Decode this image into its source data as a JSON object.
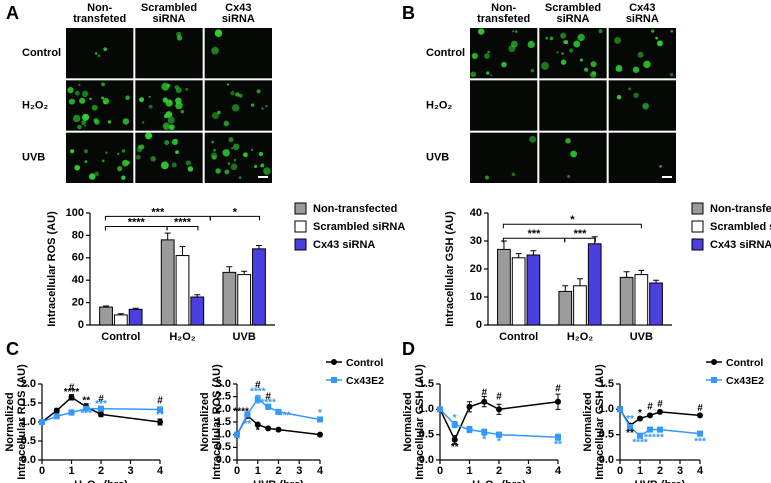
{
  "figure_panels": [
    {
      "label": "A",
      "image_grid": {
        "columns": [
          [
            "Non-",
            "transfeted"
          ],
          [
            "Scrambled",
            "siRNA"
          ],
          [
            "Cx43",
            "siRNA"
          ]
        ],
        "rows": [
          "Control",
          "H₂O₂",
          "UVB"
        ]
      }
    },
    {
      "label": "B",
      "image_grid": {
        "columns": [
          [
            "Non-",
            "transfeted"
          ],
          [
            "Scrambled",
            "siRNA"
          ],
          [
            "Cx43",
            "siRNA"
          ]
        ],
        "rows": [
          "Control",
          "H₂O₂",
          "UVB"
        ]
      }
    },
    {
      "label": "C"
    },
    {
      "label": "D"
    }
  ],
  "chart_data": [
    {
      "type": "bar",
      "ylabel": "Intracellular ROS (AU)",
      "categories": [
        "Control",
        "H₂O₂",
        "UVB"
      ],
      "ylim": [
        0,
        100
      ],
      "yticks": [
        0,
        20,
        40,
        60,
        80,
        100
      ],
      "series": [
        {
          "name": "Non-transfected",
          "color": "#9b9b9b",
          "values": [
            16,
            76,
            47
          ],
          "errors": [
            1,
            6,
            5
          ]
        },
        {
          "name": "Scrambled siRNA",
          "color": "#ffffff",
          "values": [
            9,
            62,
            45
          ],
          "errors": [
            1,
            8,
            3
          ]
        },
        {
          "name": "Cx43 siRNA",
          "color": "#4b3fe0",
          "values": [
            14,
            25,
            68
          ],
          "errors": [
            1,
            2,
            3
          ]
        }
      ],
      "brackets": [
        {
          "text": "***",
          "y": 97,
          "x": [
            -0.25,
            1.45
          ]
        },
        {
          "text": "*",
          "y": 97,
          "x": [
            1.45,
            2.25
          ]
        },
        {
          "text": "****",
          "y": 88,
          "x": [
            -0.25,
            0.75
          ]
        },
        {
          "text": "****",
          "y": 88,
          "x": [
            0.75,
            1.25
          ]
        }
      ]
    },
    {
      "type": "bar",
      "ylabel": "Intracellular GSH (AU)",
      "categories": [
        "Control",
        "H₂O₂",
        "UVB"
      ],
      "ylim": [
        0,
        40
      ],
      "yticks": [
        0,
        10,
        20,
        30,
        40
      ],
      "series": [
        {
          "name": "Non-transfected",
          "color": "#9b9b9b",
          "values": [
            27,
            12,
            17
          ],
          "errors": [
            3,
            2,
            2
          ]
        },
        {
          "name": "Scrambled siRNA",
          "color": "#ffffff",
          "values": [
            24,
            14,
            18
          ],
          "errors": [
            1.5,
            2.5,
            1.5
          ]
        },
        {
          "name": "Cx43 siRNA",
          "color": "#4b3fe0",
          "values": [
            25,
            29,
            15
          ],
          "errors": [
            1.5,
            2.5,
            1
          ]
        }
      ],
      "brackets": [
        {
          "text": "*",
          "y": 36,
          "x": [
            -0.25,
            2
          ]
        },
        {
          "text": "***",
          "y": 31,
          "x": [
            -0.25,
            0.75
          ]
        },
        {
          "text": "***",
          "y": 31,
          "x": [
            0.75,
            1.25
          ]
        }
      ]
    },
    {
      "type": "line",
      "ylabel": [
        "Normalized",
        "Intracellular ROS (AU)"
      ],
      "xlabel": "H₂O₂ (hrs)",
      "x": [
        0,
        0.5,
        1,
        1.5,
        2,
        4
      ],
      "xlim": [
        0,
        4
      ],
      "xticks": [
        0,
        1,
        2,
        3,
        4
      ],
      "ylim": [
        0,
        2
      ],
      "yticks": [
        {
          "value": 0,
          "label": "0.0"
        },
        {
          "value": 0.5,
          "label": "0.5"
        },
        {
          "value": 1,
          "label": "1.0"
        },
        {
          "value": 1.5,
          "label": "1.5"
        },
        {
          "value": 2,
          "label": "2.0"
        }
      ],
      "legend": false,
      "series": [
        {
          "name": "Control",
          "color": "#000000",
          "marker": "circle",
          "values": [
            1,
            1.3,
            1.65,
            1.4,
            1.2,
            1
          ],
          "errors": [
            0.05,
            0.06,
            0.07,
            0.08,
            0.06,
            0.08
          ]
        },
        {
          "name": "Cx43E2",
          "color": "#3399ff",
          "marker": "square",
          "values": [
            1,
            1.15,
            1.25,
            1.35,
            1.35,
            1.33
          ],
          "errors": [
            0.05,
            0.06,
            0.07,
            0.06,
            0.05,
            0.05
          ]
        }
      ],
      "annotations": [
        {
          "text": "#",
          "x": 1,
          "y": 1.9,
          "color": "#000000"
        },
        {
          "text": "****",
          "x": 1,
          "y": 1.78,
          "color": "#000000"
        },
        {
          "text": "**",
          "x": 1.5,
          "y": 1.55,
          "color": "#000000"
        },
        {
          "text": "#",
          "x": 2,
          "y": 1.6,
          "color": "#000000"
        },
        {
          "text": "#",
          "x": 4,
          "y": 1.55,
          "color": "#000000"
        },
        {
          "text": "***",
          "x": 2,
          "y": 1.47,
          "color": "#3399ff"
        },
        {
          "text": "***",
          "x": 1.5,
          "y": 1.22,
          "color": "#3399ff"
        },
        {
          "text": "**",
          "x": 4,
          "y": 1.17,
          "color": "#3399ff"
        }
      ]
    },
    {
      "type": "line",
      "ylabel": [
        "Normalized",
        "Intracellular ROS (AU)"
      ],
      "xlabel": "UVB (hrs)",
      "x": [
        0,
        0.5,
        1,
        1.5,
        2,
        4
      ],
      "xlim": [
        0,
        4
      ],
      "xticks": [
        0,
        1,
        2,
        3,
        4
      ],
      "ylim": [
        0,
        3
      ],
      "yticks": [
        {
          "value": 0,
          "label": "0.0"
        },
        {
          "value": 0.5,
          "label": "0.5"
        },
        {
          "value": 1,
          "label": "1.0"
        },
        {
          "value": 1.5,
          "label": "1.5"
        },
        {
          "value": 2,
          "label": "2.0"
        },
        {
          "value": 2.5,
          "label": "2.5"
        },
        {
          "value": 3,
          "label": "3.0"
        }
      ],
      "legend": true,
      "series": [
        {
          "name": "Control",
          "color": "#000000",
          "marker": "circle",
          "values": [
            1,
            1.75,
            1.4,
            1.25,
            1.2,
            1
          ],
          "errors": [
            0.05,
            0.1,
            0.06,
            0.05,
            0.05,
            0.05
          ]
        },
        {
          "name": "Cx43E2",
          "color": "#3399ff",
          "marker": "square",
          "values": [
            1,
            1.8,
            2.4,
            2.1,
            1.9,
            1.6
          ],
          "errors": [
            0.05,
            0.1,
            0.15,
            0.1,
            0.08,
            0.08
          ]
        }
      ],
      "annotations": [
        {
          "text": "****",
          "x": 0.2,
          "y": 1.9,
          "color": "#000000"
        },
        {
          "text": "*",
          "x": 1,
          "y": 1.15,
          "color": "#000000"
        },
        {
          "text": "#",
          "x": 1,
          "y": 2.95,
          "color": "#000000"
        },
        {
          "text": "****",
          "x": 1,
          "y": 2.68,
          "color": "#3399ff"
        },
        {
          "text": "#",
          "x": 1.5,
          "y": 2.5,
          "color": "#000000"
        },
        {
          "text": "****",
          "x": 1.5,
          "y": 2.25,
          "color": "#3399ff"
        },
        {
          "text": "****",
          "x": 2.2,
          "y": 1.75,
          "color": "#3399ff"
        },
        {
          "text": "**",
          "x": 0.5,
          "y": 1.4,
          "color": "#3399ff"
        },
        {
          "text": "*",
          "x": 4,
          "y": 1.85,
          "color": "#3399ff"
        }
      ]
    },
    {
      "type": "line",
      "ylabel": [
        "Normalized",
        "Intracellular GSH (AU)"
      ],
      "xlabel": "H₂O₂ (hrs)",
      "x": [
        0,
        0.5,
        1,
        1.5,
        2,
        4
      ],
      "xlim": [
        0,
        4
      ],
      "xticks": [
        0,
        1,
        2,
        3,
        4
      ],
      "ylim": [
        0,
        1.5
      ],
      "yticks": [
        {
          "value": 0,
          "label": "0.0"
        },
        {
          "value": 0.5,
          "label": "0.5"
        },
        {
          "value": 1,
          "label": "1.0"
        },
        {
          "value": 1.5,
          "label": "1.5"
        }
      ],
      "legend": false,
      "series": [
        {
          "name": "Control",
          "color": "#000000",
          "marker": "circle",
          "values": [
            1,
            0.4,
            1.05,
            1.15,
            1,
            1.15
          ],
          "errors": [
            0.04,
            0.08,
            0.1,
            0.1,
            0.1,
            0.15
          ]
        },
        {
          "name": "Cx43E2",
          "color": "#3399ff",
          "marker": "square",
          "values": [
            1,
            0.7,
            0.6,
            0.55,
            0.5,
            0.45
          ],
          "errors": [
            0.04,
            0.06,
            0.06,
            0.06,
            0.05,
            0.06
          ]
        }
      ],
      "annotations": [
        {
          "text": "**",
          "x": 0.5,
          "y": 0.25,
          "color": "#000000"
        },
        {
          "text": "#",
          "x": 1.5,
          "y": 1.33,
          "color": "#000000"
        },
        {
          "text": "#",
          "x": 2,
          "y": 1.25,
          "color": "#000000"
        },
        {
          "text": "#",
          "x": 4,
          "y": 1.4,
          "color": "#000000"
        },
        {
          "text": "*",
          "x": 0.5,
          "y": 0.82,
          "color": "#3399ff"
        },
        {
          "text": "*",
          "x": 1.5,
          "y": 0.4,
          "color": "#3399ff"
        },
        {
          "text": "*",
          "x": 2,
          "y": 0.36,
          "color": "#3399ff"
        },
        {
          "text": "**",
          "x": 4,
          "y": 0.3,
          "color": "#3399ff"
        }
      ]
    },
    {
      "type": "line",
      "ylabel": [
        "Normalized",
        "Intracellular GSH (AU)"
      ],
      "xlabel": "UVB (hrs)",
      "x": [
        0,
        0.5,
        1,
        1.5,
        2,
        4
      ],
      "xlim": [
        0,
        4
      ],
      "xticks": [
        0,
        1,
        2,
        3,
        4
      ],
      "ylim": [
        0,
        1.5
      ],
      "yticks": [
        {
          "value": 0,
          "label": "0.0"
        },
        {
          "value": 0.5,
          "label": "0.5"
        },
        {
          "value": 1,
          "label": "1.0"
        },
        {
          "value": 1.5,
          "label": "1.5"
        }
      ],
      "legend": true,
      "series": [
        {
          "name": "Control",
          "color": "#000000",
          "marker": "circle",
          "values": [
            1,
            0.68,
            0.82,
            0.88,
            0.95,
            0.88
          ],
          "errors": [
            0.05,
            0.04,
            0.03,
            0.03,
            0.03,
            0.03
          ]
        },
        {
          "name": "Cx43E2",
          "color": "#3399ff",
          "marker": "square",
          "values": [
            1,
            0.65,
            0.48,
            0.6,
            0.6,
            0.52
          ],
          "errors": [
            0.05,
            0.05,
            0.04,
            0.04,
            0.04,
            0.04
          ]
        }
      ],
      "annotations": [
        {
          "text": "**",
          "x": 0.5,
          "y": 0.53,
          "color": "#000000"
        },
        {
          "text": "*",
          "x": 1,
          "y": 0.92,
          "color": "#000000"
        },
        {
          "text": "#",
          "x": 1.5,
          "y": 1.05,
          "color": "#000000"
        },
        {
          "text": "#",
          "x": 2,
          "y": 1.1,
          "color": "#000000"
        },
        {
          "text": "#",
          "x": 4,
          "y": 1.02,
          "color": "#000000"
        },
        {
          "text": "**",
          "x": 0.5,
          "y": 0.8,
          "color": "#3399ff"
        },
        {
          "text": "****",
          "x": 1,
          "y": 0.34,
          "color": "#3399ff"
        },
        {
          "text": "***",
          "x": 1.5,
          "y": 0.44,
          "color": "#3399ff"
        },
        {
          "text": "**",
          "x": 2,
          "y": 0.44,
          "color": "#3399ff"
        },
        {
          "text": "***",
          "x": 4,
          "y": 0.36,
          "color": "#3399ff"
        }
      ]
    }
  ]
}
